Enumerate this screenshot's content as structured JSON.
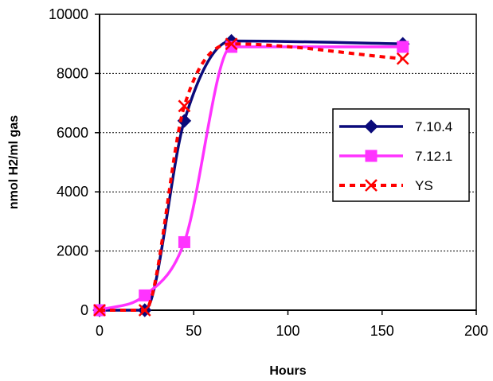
{
  "chart_data": {
    "type": "line",
    "title": "",
    "xlabel": "Hours",
    "ylabel": "nmol H2/ml gas",
    "xlim": [
      0,
      200
    ],
    "ylim": [
      0,
      10000
    ],
    "xticks": [
      0,
      50,
      100,
      150,
      200
    ],
    "yticks": [
      0,
      2000,
      4000,
      6000,
      8000,
      10000
    ],
    "grid": "horizontal dashed",
    "legend_position": "right",
    "series": [
      {
        "name": "7.10.4",
        "color": "#0a0a7a",
        "line_style": "solid",
        "marker": "diamond",
        "x": [
          0,
          24,
          45,
          70,
          161
        ],
        "y": [
          0,
          0,
          6400,
          9100,
          9000
        ]
      },
      {
        "name": "7.12.1",
        "color": "#ff33ff",
        "line_style": "solid",
        "marker": "square",
        "x": [
          0,
          24,
          45,
          70,
          161
        ],
        "y": [
          0,
          500,
          2300,
          8900,
          8900
        ]
      },
      {
        "name": "YS",
        "color": "#ff0000",
        "line_style": "dashed",
        "marker": "x",
        "x": [
          0,
          24,
          45,
          70,
          161
        ],
        "y": [
          0,
          0,
          6900,
          9000,
          8500
        ]
      }
    ]
  }
}
